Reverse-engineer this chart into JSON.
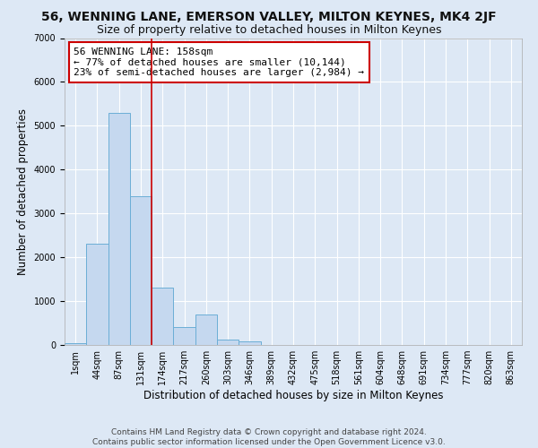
{
  "title1": "56, WENNING LANE, EMERSON VALLEY, MILTON KEYNES, MK4 2JF",
  "title2": "Size of property relative to detached houses in Milton Keynes",
  "xlabel": "Distribution of detached houses by size in Milton Keynes",
  "ylabel": "Number of detached properties",
  "footnote": "Contains HM Land Registry data © Crown copyright and database right 2024.\nContains public sector information licensed under the Open Government Licence v3.0.",
  "bar_labels": [
    "1sqm",
    "44sqm",
    "87sqm",
    "131sqm",
    "174sqm",
    "217sqm",
    "260sqm",
    "303sqm",
    "346sqm",
    "389sqm",
    "432sqm",
    "475sqm",
    "518sqm",
    "561sqm",
    "604sqm",
    "648sqm",
    "691sqm",
    "734sqm",
    "777sqm",
    "820sqm",
    "863sqm"
  ],
  "bar_values": [
    50,
    2300,
    5300,
    3400,
    1300,
    400,
    700,
    130,
    80,
    0,
    0,
    0,
    0,
    0,
    0,
    0,
    0,
    0,
    0,
    0,
    0
  ],
  "bar_color": "#c5d8ef",
  "bar_edge_color": "#6baed6",
  "vline_x": 3.5,
  "vline_color": "#cc0000",
  "annotation_text": "56 WENNING LANE: 158sqm\n← 77% of detached houses are smaller (10,144)\n23% of semi-detached houses are larger (2,984) →",
  "annotation_box_color": "#ffffff",
  "annotation_box_edge": "#cc0000",
  "ylim": [
    0,
    7000
  ],
  "background_color": "#dde8f5",
  "plot_bg_color": "#dde8f5",
  "grid_color": "#ffffff",
  "title1_fontsize": 10,
  "title2_fontsize": 9,
  "xlabel_fontsize": 8.5,
  "ylabel_fontsize": 8.5,
  "tick_fontsize": 7,
  "annotation_fontsize": 8,
  "footnote_fontsize": 6.5
}
